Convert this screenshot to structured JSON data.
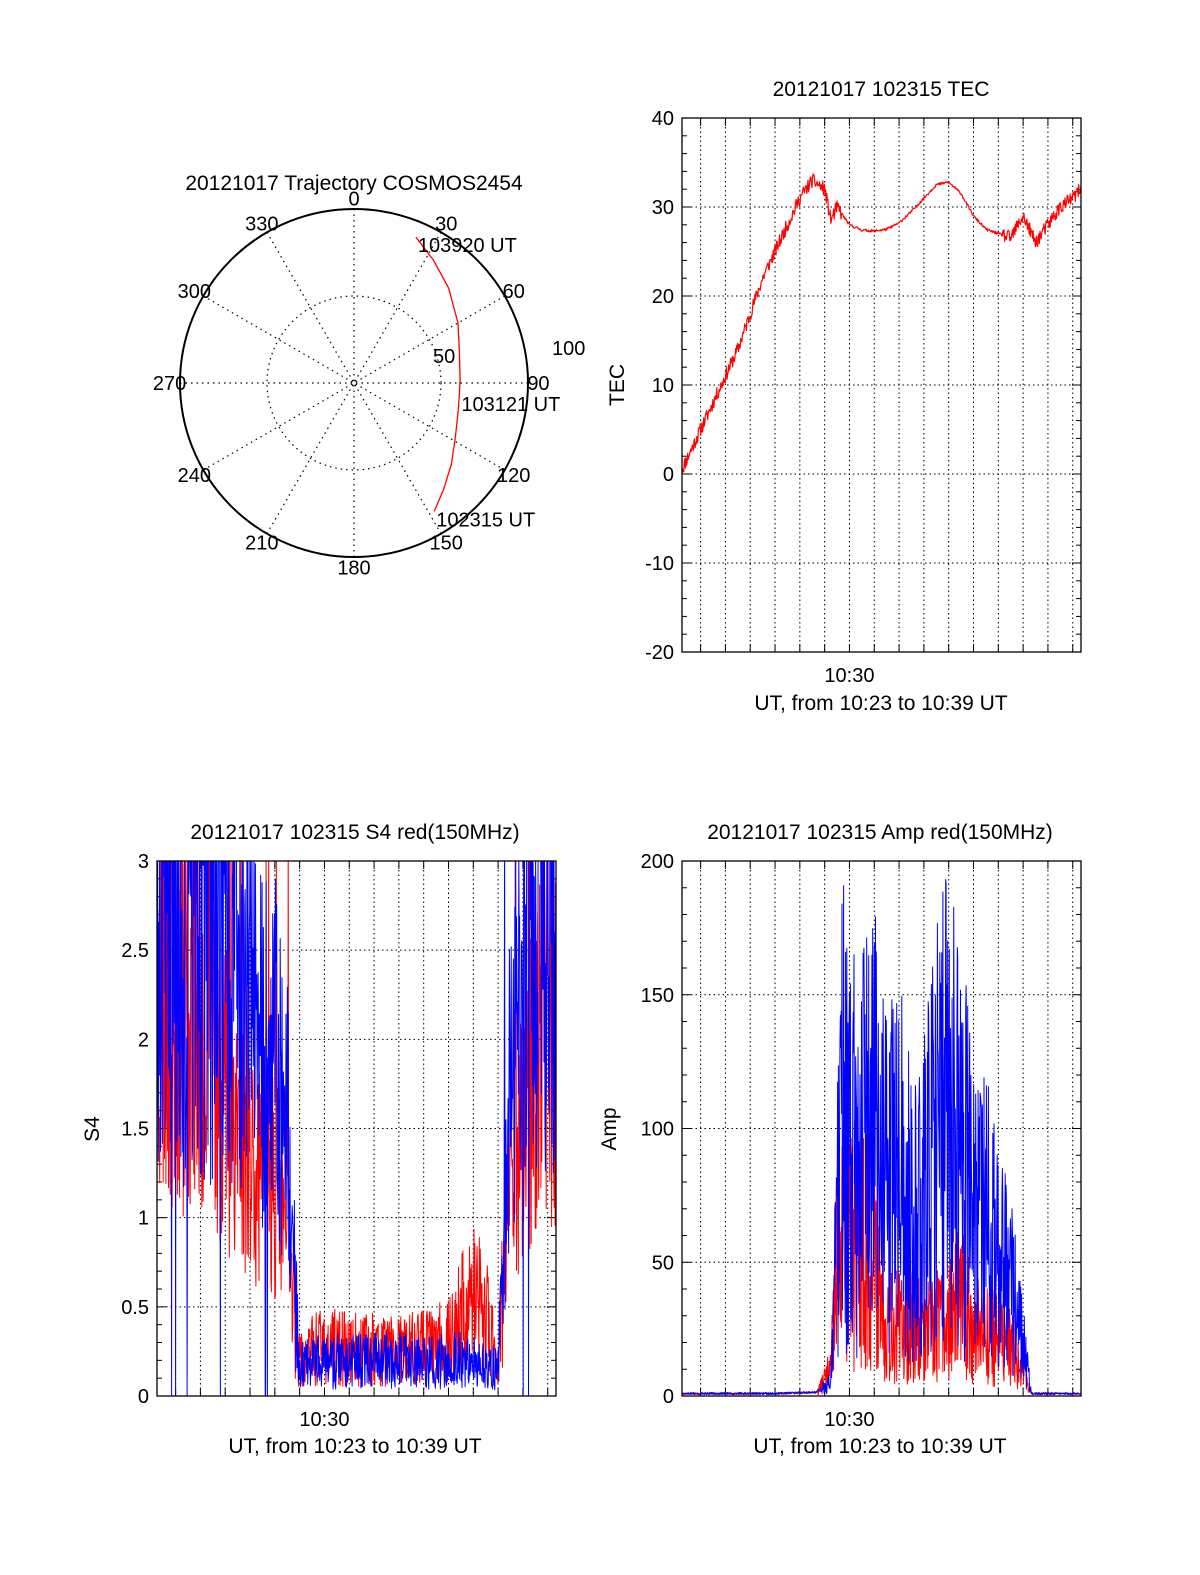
{
  "colors": {
    "red": "#ff0000",
    "blue": "#0000ff",
    "axis": "#000000",
    "grid": "#000000"
  },
  "chart_data": [
    {
      "id": "polar",
      "type": "scatter",
      "projection": "polar",
      "title": "20121017 Trajectory COSMOS2454",
      "azimuth_labels": [
        "0",
        "30",
        "60",
        "90",
        "120",
        "150",
        "180",
        "210",
        "240",
        "270",
        "300",
        "330"
      ],
      "radial_labels": [
        "50",
        "100"
      ],
      "radial_max": 100,
      "series": [
        {
          "color": "#ff0000",
          "points": [
            {
              "az": 148,
              "r": 87
            },
            {
              "az": 140,
              "r": 80
            },
            {
              "az": 130,
              "r": 73
            },
            {
              "az": 118,
              "r": 66
            },
            {
              "az": 105,
              "r": 62
            },
            {
              "az": 97,
              "r": 61
            },
            {
              "az": 88,
              "r": 61
            },
            {
              "az": 74,
              "r": 63
            },
            {
              "az": 60,
              "r": 69
            },
            {
              "az": 45,
              "r": 77
            },
            {
              "az": 33,
              "r": 84
            },
            {
              "az": 23,
              "r": 91
            }
          ]
        }
      ],
      "annotations": [
        {
          "text": "103920 UT",
          "az": 23,
          "r": 91
        },
        {
          "text": "103121 UT",
          "az": 97,
          "r": 61
        },
        {
          "text": "102315 UT",
          "az": 148,
          "r": 87
        }
      ]
    },
    {
      "id": "tec",
      "type": "line",
      "title": "20121017 102315 TEC",
      "xlabel": "UT, from 10:23 to 10:39 UT",
      "ylabel": "TEC",
      "xlim": [
        "10:23:15",
        "10:39:20"
      ],
      "ylim": [
        -20,
        40
      ],
      "yticks": [
        -20,
        -10,
        0,
        10,
        20,
        30,
        40
      ],
      "xtick_labels": [
        {
          "value": "10:30:00",
          "label": "10:30"
        }
      ],
      "grid": true,
      "series": [
        {
          "color": "#ff0000",
          "x": [
            "10:23:15",
            "10:23:30",
            "10:24:00",
            "10:24:30",
            "10:25:00",
            "10:25:30",
            "10:26:00",
            "10:26:30",
            "10:27:00",
            "10:27:30",
            "10:28:00",
            "10:28:30",
            "10:29:00",
            "10:29:15",
            "10:29:30",
            "10:30:00",
            "10:30:30",
            "10:31:00",
            "10:31:30",
            "10:32:00",
            "10:32:30",
            "10:33:00",
            "10:33:30",
            "10:34:00",
            "10:34:30",
            "10:35:00",
            "10:35:30",
            "10:36:00",
            "10:36:30",
            "10:37:00",
            "10:37:30",
            "10:38:00",
            "10:38:30",
            "10:39:00",
            "10:39:20"
          ],
          "values": [
            0.5,
            2,
            5,
            8,
            11,
            14,
            18,
            22,
            25,
            28,
            31,
            33,
            32,
            28.5,
            30,
            28,
            27.4,
            27.3,
            27.5,
            28.2,
            29.5,
            31,
            32.5,
            32.8,
            31.5,
            29,
            27.5,
            27,
            26.5,
            29,
            26,
            28,
            30,
            31,
            32
          ]
        }
      ]
    },
    {
      "id": "s4",
      "type": "line",
      "title": "20121017 102315 S4 red(150MHz)",
      "xlabel": "UT, from 10:23 to 10:39 UT",
      "ylabel": "S4",
      "xlim": [
        "10:23:15",
        "10:39:20"
      ],
      "ylim": [
        0,
        3
      ],
      "yticks": [
        0,
        0.5,
        1,
        1.5,
        2,
        2.5,
        3
      ],
      "ytick_labels": [
        "0",
        "0.5",
        "1",
        "1.5",
        "2",
        "2.5",
        "3"
      ],
      "xtick_labels": [
        {
          "value": "10:30:00",
          "label": "10:30"
        }
      ],
      "grid": true,
      "series": [
        {
          "color": "#ff0000",
          "x": [
            "10:23:15",
            "10:24:00",
            "10:25:00",
            "10:26:00",
            "10:27:00",
            "10:27:30",
            "10:28:00",
            "10:28:30",
            "10:29:00",
            "10:29:30",
            "10:30:00",
            "10:31:00",
            "10:32:00",
            "10:33:00",
            "10:34:00",
            "10:35:00",
            "10:35:30",
            "10:36:00",
            "10:36:30",
            "10:37:00",
            "10:37:30",
            "10:38:00",
            "10:38:30",
            "10:39:00",
            "10:39:20"
          ],
          "values": [
            2.2,
            2.3,
            2.1,
            1.8,
            1.35,
            1.3,
            1.2,
            0.9,
            0.2,
            0.25,
            0.28,
            0.26,
            0.27,
            0.25,
            0.28,
            0.3,
            0.45,
            0.55,
            0.45,
            0.2,
            1.3,
            1.6,
            1.8,
            2.0,
            2.1
          ]
        },
        {
          "color": "#0000ff",
          "x": [
            "10:23:15",
            "10:24:00",
            "10:25:00",
            "10:26:00",
            "10:27:00",
            "10:27:30",
            "10:28:00",
            "10:28:30",
            "10:29:00",
            "10:29:30",
            "10:30:00",
            "10:31:00",
            "10:32:00",
            "10:33:00",
            "10:34:00",
            "10:35:00",
            "10:35:30",
            "10:36:00",
            "10:36:30",
            "10:37:00",
            "10:37:30",
            "10:38:00",
            "10:38:30",
            "10:39:00",
            "10:39:20"
          ],
          "values": [
            2.5,
            2.6,
            2.5,
            2.6,
            2.2,
            2.0,
            1.9,
            1.5,
            0.18,
            0.18,
            0.2,
            0.19,
            0.2,
            0.2,
            0.18,
            0.2,
            0.2,
            0.2,
            0.16,
            0.15,
            1.8,
            2.5,
            2.8,
            2.5,
            2.6
          ]
        }
      ]
    },
    {
      "id": "amp",
      "type": "line",
      "title": "20121017 102315 Amp red(150MHz)",
      "xlabel": "UT, from 10:23 to 10:39 UT",
      "ylabel": "Amp",
      "xlim": [
        "10:23:15",
        "10:39:20"
      ],
      "ylim": [
        0,
        200
      ],
      "yticks": [
        0,
        50,
        100,
        150,
        200
      ],
      "xtick_labels": [
        {
          "value": "10:30:00",
          "label": "10:30"
        }
      ],
      "grid": true,
      "series": [
        {
          "color": "#ff0000",
          "x": [
            "10:23:15",
            "10:25:00",
            "10:27:00",
            "10:28:40",
            "10:29:15",
            "10:29:30",
            "10:29:45",
            "10:30:00",
            "10:30:30",
            "10:31:00",
            "10:31:30",
            "10:32:00",
            "10:32:30",
            "10:33:00",
            "10:33:30",
            "10:34:00",
            "10:34:30",
            "10:35:00",
            "10:35:30",
            "10:36:00",
            "10:36:30",
            "10:37:00",
            "10:37:20",
            "10:38:00",
            "10:39:20"
          ],
          "values": [
            0.5,
            0.5,
            0.5,
            1,
            10,
            45,
            70,
            55,
            60,
            48,
            30,
            25,
            28,
            22,
            25,
            30,
            35,
            28,
            25,
            22,
            18,
            10,
            0.5,
            0.5,
            0.5
          ]
        },
        {
          "color": "#0000ff",
          "x": [
            "10:23:15",
            "10:25:00",
            "10:27:00",
            "10:28:40",
            "10:29:15",
            "10:29:30",
            "10:29:45",
            "10:30:00",
            "10:30:30",
            "10:31:00",
            "10:31:30",
            "10:32:00",
            "10:32:30",
            "10:33:00",
            "10:33:30",
            "10:34:00",
            "10:34:30",
            "10:35:00",
            "10:35:30",
            "10:36:00",
            "10:36:30",
            "10:37:00",
            "10:37:20",
            "10:38:00",
            "10:39:20"
          ],
          "values": [
            0.5,
            0.5,
            0.5,
            1,
            5,
            60,
            110,
            95,
            90,
            100,
            80,
            85,
            70,
            75,
            95,
            110,
            90,
            75,
            65,
            55,
            40,
            20,
            0.5,
            0.5,
            0.5
          ]
        }
      ]
    }
  ]
}
